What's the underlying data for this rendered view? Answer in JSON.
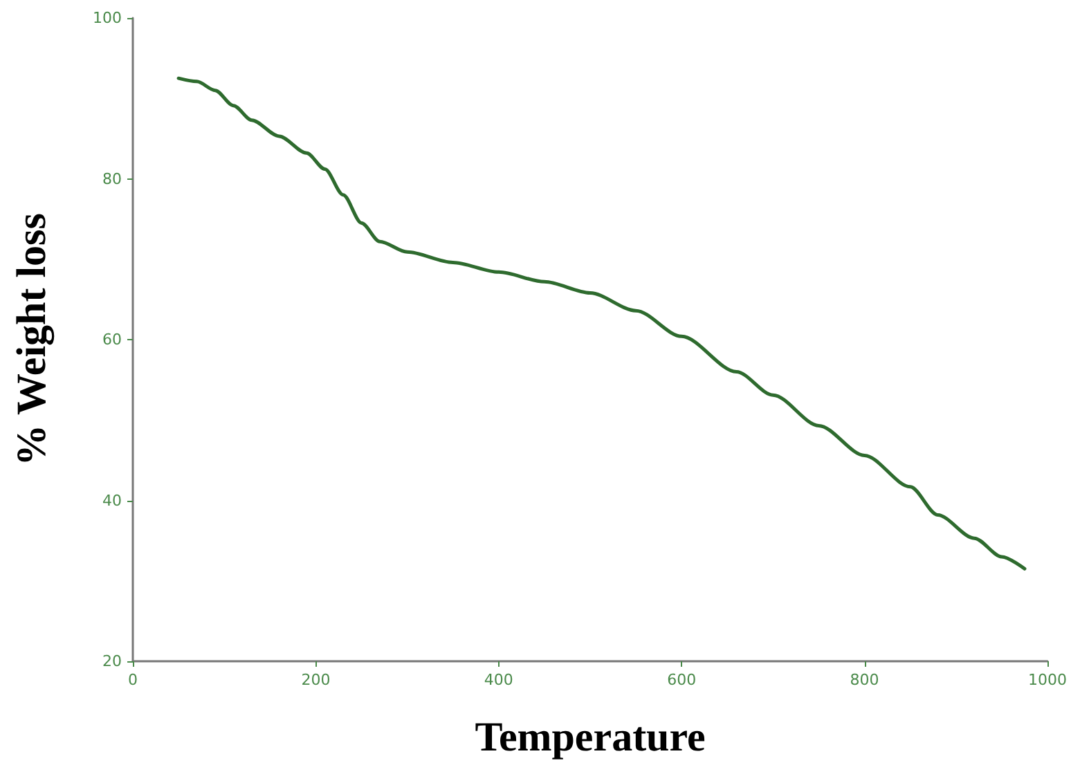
{
  "chart_data": {
    "type": "line",
    "xlabel": "Temperature",
    "ylabel": "% Weight loss",
    "x": [
      50,
      70,
      90,
      110,
      130,
      160,
      190,
      210,
      230,
      250,
      270,
      300,
      350,
      400,
      450,
      500,
      550,
      600,
      660,
      700,
      750,
      800,
      850,
      880,
      920,
      950,
      975
    ],
    "series": [
      {
        "color": "#2e6b2e",
        "values": [
          92.5,
          92.1,
          91,
          89.1,
          87.3,
          85.3,
          83.2,
          81.2,
          78,
          74.5,
          72.2,
          70.9,
          69.6,
          68.4,
          67.2,
          65.8,
          63.6,
          60.4,
          56,
          53.1,
          49.3,
          45.6,
          41.7,
          38.2,
          35.3,
          33,
          31.5
        ]
      }
    ],
    "xlim": [
      0,
      1000
    ],
    "xticks": [
      0,
      200,
      400,
      600,
      800,
      1000
    ],
    "ylim": [
      20,
      100
    ],
    "yticks": [
      20,
      40,
      60,
      80,
      100
    ],
    "grid": false,
    "marker": "none",
    "line_style": "solid"
  }
}
